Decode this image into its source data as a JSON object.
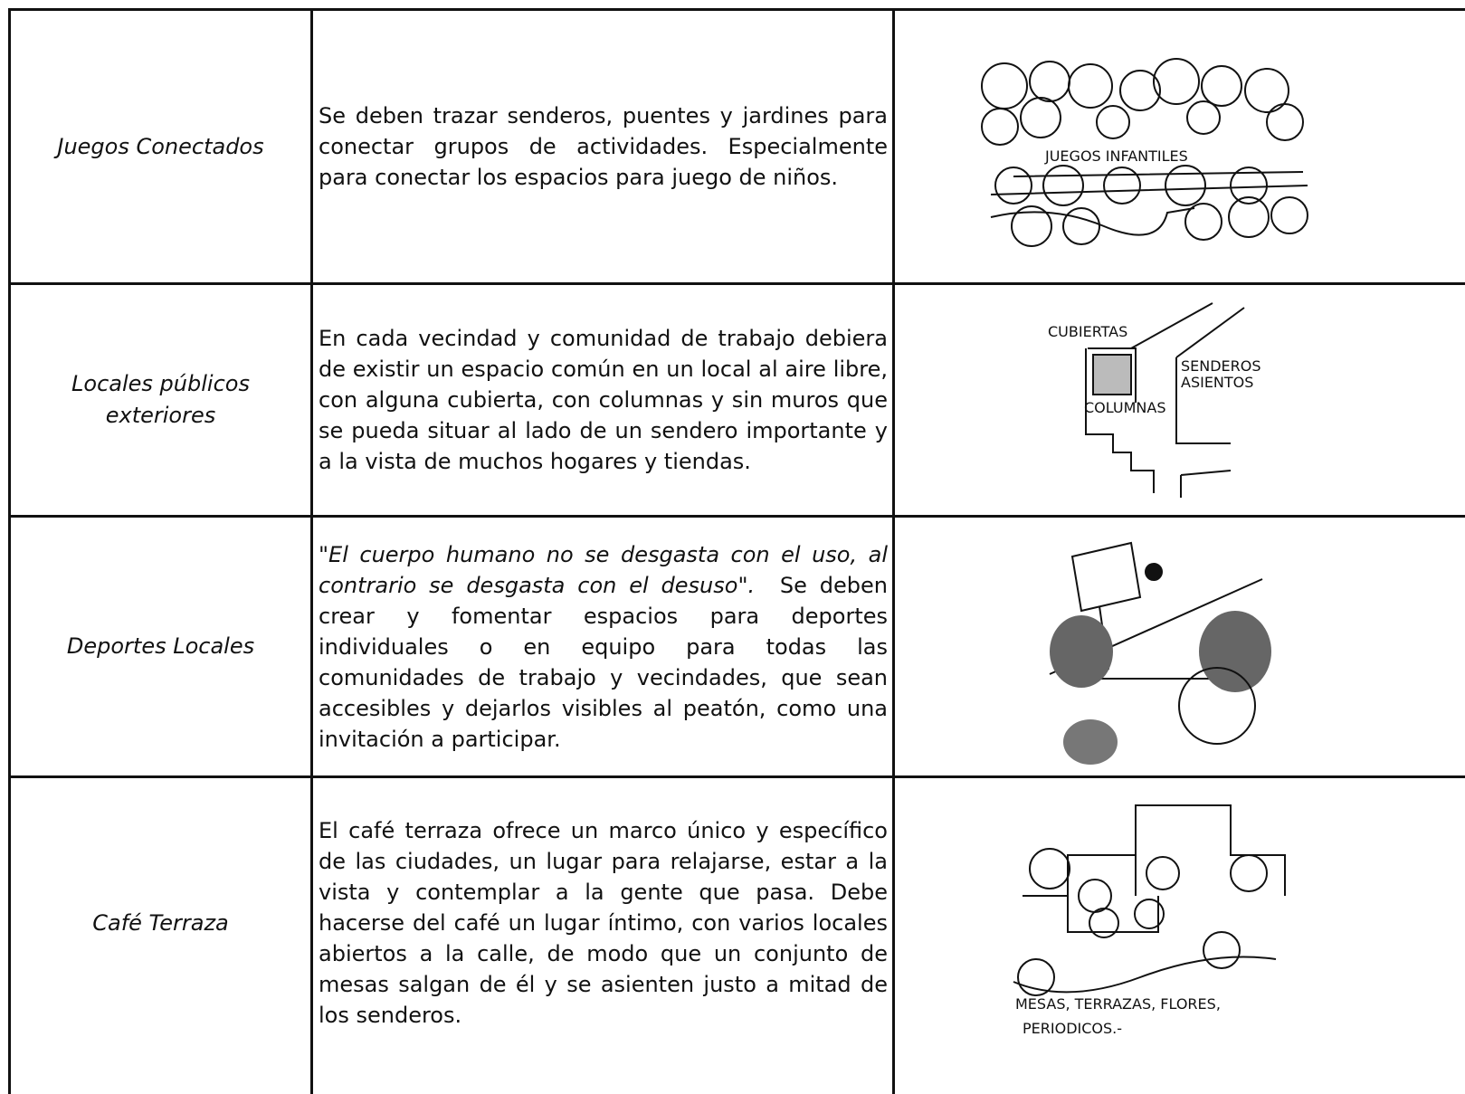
{
  "table": {
    "rows": [
      {
        "name": "Juegos Conectados",
        "description": "Se deben trazar senderos, puentes y jardines para conectar grupos de actividades. Especialmente para conectar los espacios para juego de niños.",
        "sketch_labels": [
          "JUEGOS INFANTILES"
        ]
      },
      {
        "name": "Locales públicos exteriores",
        "description": "En cada vecindad y comunidad de trabajo debiera de existir un espacio común en un local al aire libre, con alguna cubierta, con columnas y sin muros que se pueda situar al lado de un sendero importante y a la vista de muchos hogares y tiendas.",
        "sketch_labels": [
          "CUBIERTAS",
          "SENDEROS",
          "ASIENTOS",
          "COLUMNAS"
        ]
      },
      {
        "name": "Deportes Locales",
        "description": {
          "quote": "\"El cuerpo humano no se desgasta con el uso, al contrario se desgasta con el desuso\".",
          "text": "Se deben crear y fomentar espacios para deportes individuales o en equipo para todas las comunidades de trabajo y vecindades, que sean accesibles y dejarlos visibles al peatón, como una invitación a participar."
        }
      },
      {
        "name": "Café Terraza",
        "description": "El café terraza ofrece un marco único y específico de las ciudades, un lugar para relajarse, estar a la vista y contemplar a la gente que pasa. Debe hacerse del café un lugar íntimo, con varios locales abiertos a la calle, de modo que un conjunto de mesas salgan de él y se asienten justo a mitad de los senderos.",
        "sketch_labels": [
          "MESAS, TERRAZAS, FLORES,",
          "PERIODICOS.-"
        ]
      }
    ]
  }
}
